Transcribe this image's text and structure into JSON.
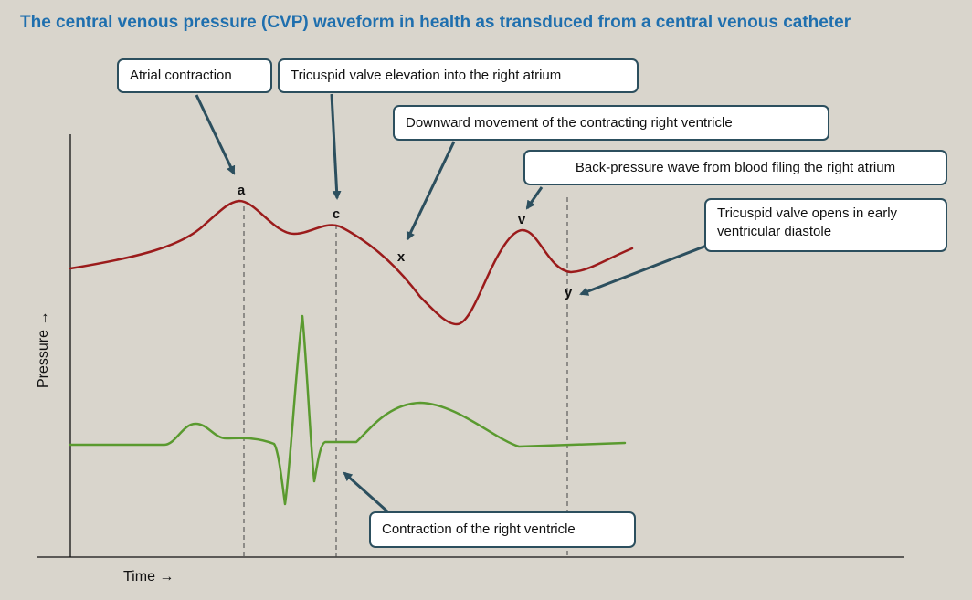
{
  "title": "The central venous pressure (CVP) waveform in health as transduced from a central venous catheter",
  "axes": {
    "x_label": "Time →",
    "y_label": "Pressure →"
  },
  "wave_labels": {
    "a": "a",
    "c": "c",
    "x": "x",
    "v": "v",
    "y": "y"
  },
  "callouts": {
    "atrial_contraction": "Atrial contraction",
    "tricuspid_elevation": "Tricuspid valve elevation into the right atrium",
    "downward_movement": "Downward movement of the contracting right ventricle",
    "back_pressure": "Back-pressure wave from blood filing the right atrium",
    "tricuspid_opens": "Tricuspid valve opens in early ventricular diastole",
    "rv_contraction": "Contraction of the right ventricle"
  },
  "colors": {
    "cvp_trace": "#9b1b1b",
    "ecg_trace": "#5a9a2f",
    "callout_border": "#2c4f5e",
    "arrow": "#2c4f5e",
    "title": "#1f6fae"
  }
}
